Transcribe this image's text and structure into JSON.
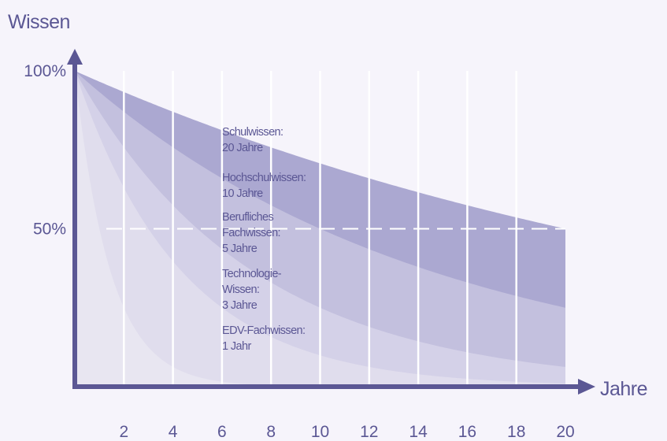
{
  "chart_data": {
    "type": "area",
    "ylabel": "Wissen",
    "xlabel": "Jahre",
    "x_ticks": [
      "2",
      "4",
      "6",
      "8",
      "10",
      "12",
      "14",
      "16",
      "18",
      "20"
    ],
    "y_ticks": [
      {
        "label": "100%",
        "value": 100
      },
      {
        "label": "50%",
        "value": 50
      }
    ],
    "xlim": [
      0,
      20
    ],
    "ylim": [
      0,
      100
    ],
    "grid": "vertical",
    "reference_line": {
      "value": 50,
      "style": "dashed"
    },
    "series": [
      {
        "lines": [
          "Schulwissen:",
          "20 Jahre"
        ],
        "halflife": 20,
        "values": [
          100,
          96.6,
          93.3,
          90.1,
          87.1,
          84.1,
          81.2,
          78.5,
          75.8,
          73.2,
          70.7,
          68.3,
          66.0,
          63.7,
          61.6,
          59.5,
          57.4,
          55.5,
          53.6,
          51.8,
          50.0
        ]
      },
      {
        "lines": [
          "Hochschulwissen:",
          "10 Jahre"
        ],
        "halflife": 10,
        "values": [
          100,
          93.3,
          87.1,
          81.2,
          75.8,
          70.7,
          66.0,
          61.6,
          57.4,
          53.6,
          50.0,
          46.7,
          43.5,
          40.6,
          37.9,
          35.4,
          33.0,
          30.8,
          28.7,
          26.8,
          25.0
        ]
      },
      {
        "lines": [
          "Berufliches",
          "Fachwissen:",
          "5 Jahre"
        ],
        "halflife": 5,
        "values": [
          100,
          87.1,
          75.8,
          66.0,
          57.4,
          50.0,
          43.5,
          37.9,
          33.0,
          28.7,
          25.0,
          21.8,
          18.9,
          16.5,
          14.4,
          12.5,
          10.9,
          9.5,
          8.2,
          7.2,
          6.3
        ]
      },
      {
        "lines": [
          "Technologie-",
          "Wissen:",
          "3 Jahre"
        ],
        "halflife": 3,
        "values": [
          100,
          79.4,
          63.0,
          50.0,
          39.7,
          31.5,
          25.0,
          19.8,
          15.7,
          12.5,
          9.9,
          7.9,
          6.3,
          5.0,
          3.9,
          3.1,
          2.5,
          2.0,
          1.6,
          1.2,
          1.0
        ]
      },
      {
        "lines": [
          "EDV-Fachwissen:",
          "1 Jahr"
        ],
        "halflife": 1,
        "values": [
          100,
          50.0,
          25.0,
          12.5,
          6.3,
          3.1,
          1.6,
          0.8,
          0.4,
          0.2,
          0.1,
          0,
          0,
          0,
          0,
          0,
          0,
          0,
          0,
          0,
          0
        ]
      }
    ],
    "colors": {
      "axis": "#5b5794",
      "grid": "#ffffff",
      "bands": [
        "#ab a8d1",
        "#c3c0de",
        "#d4d1e8",
        "#e0dded",
        "#e8e6f1"
      ],
      "background": "#f6f4fb"
    },
    "legend": "inline-center"
  }
}
